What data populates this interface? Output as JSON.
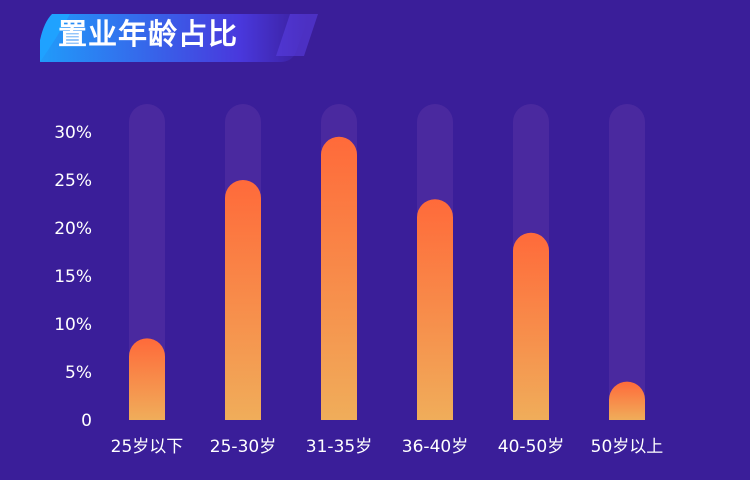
{
  "colors": {
    "background": "#3a1e99",
    "track": "#4c2aa0",
    "bar_top": "#ff6a3a",
    "bar_bottom": "#f0ad5a",
    "badge_left": "#1fa2ff",
    "badge_right": "#4a39e0",
    "text": "#ffffff"
  },
  "chart_data": {
    "type": "bar",
    "title": "置业年龄占比",
    "xlabel": "",
    "ylabel": "",
    "ylim": [
      0,
      30
    ],
    "y_ticks": [
      0,
      5,
      10,
      15,
      20,
      25,
      30
    ],
    "y_tick_labels": [
      "0",
      "5%",
      "10%",
      "15%",
      "20%",
      "25%",
      "30%"
    ],
    "categories": [
      "25岁以下",
      "25-30岁",
      "31-35岁",
      "36-40岁",
      "40-50岁",
      "50岁以上"
    ],
    "values": [
      8.5,
      25.0,
      29.5,
      23.0,
      19.5,
      4.0
    ],
    "grid": false,
    "legend": "none"
  }
}
